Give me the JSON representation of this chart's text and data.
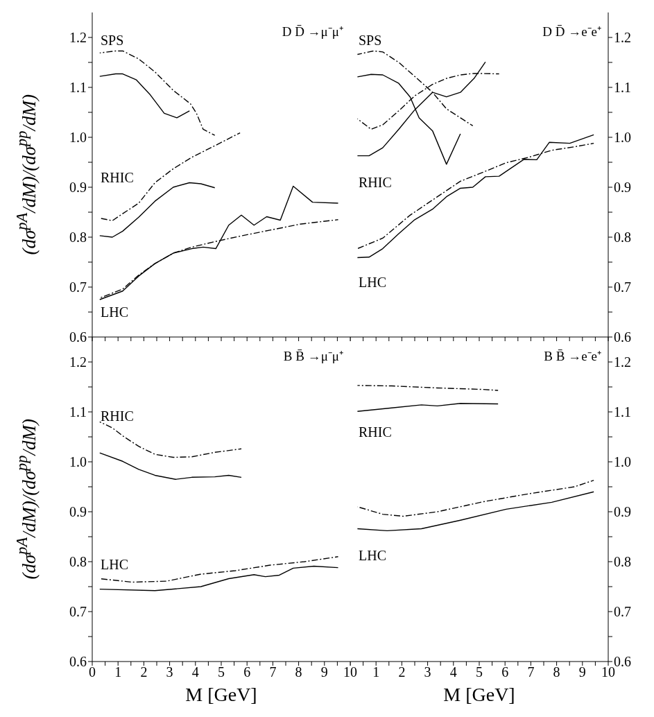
{
  "chart_data": [
    {
      "type": "line",
      "marker": "none",
      "ylabel": "(dσ$^{pA}$/dM)/(dσ$^{pp}$/dM)",
      "tick_labels": "y",
      "xlim": [
        0,
        10
      ],
      "xticks": [
        0,
        {
          "value": 0.5,
          "label": null
        },
        1,
        {
          "value": 1.5,
          "label": null
        },
        2,
        {
          "value": 2.5,
          "label": null
        },
        3,
        {
          "value": 3.5,
          "label": null
        },
        4,
        {
          "value": 4.5,
          "label": null
        },
        5,
        {
          "value": 5.5,
          "label": null
        },
        6,
        {
          "value": 6.5,
          "label": null
        },
        7,
        {
          "value": 7.5,
          "label": null
        },
        8,
        {
          "value": 8.5,
          "label": null
        },
        9,
        {
          "value": 9.5,
          "label": null
        },
        10
      ],
      "ylim": [
        0.6,
        1.25
      ],
      "yticks": [
        0.6,
        {
          "value": 0.65,
          "label": null
        },
        0.7,
        {
          "value": 0.75,
          "label": null
        },
        0.8,
        {
          "value": 0.85,
          "label": null
        },
        0.9,
        {
          "value": 0.95,
          "label": null
        },
        {
          "value": 1,
          "label": "1.0"
        },
        {
          "value": 1.05,
          "label": null
        },
        1.1,
        {
          "value": 1.15,
          "label": null
        },
        1.2
      ],
      "annotations": [
        "D D̄ →μ⁻μ⁺",
        "SPS",
        "RHIC",
        "LHC"
      ],
      "series": [
        {
          "color": "#000000",
          "line_style": "dashed",
          "x": [
            0.29,
            0.91,
            1.18,
            1.8,
            2.43,
            3.14,
            3.81,
            4.04,
            4.3,
            4.75
          ],
          "values": [
            1.169,
            1.173,
            1.173,
            1.157,
            1.131,
            1.094,
            1.067,
            1.048,
            1.016,
            1.004
          ]
        },
        {
          "color": "#000000",
          "line_style": "solid",
          "x": [
            0.29,
            0.91,
            1.18,
            1.71,
            2.25,
            2.79,
            3.28,
            3.77
          ],
          "values": [
            1.122,
            1.127,
            1.127,
            1.115,
            1.085,
            1.048,
            1.039,
            1.053
          ]
        },
        {
          "color": "#000000",
          "line_style": "dashed",
          "x": [
            0.29,
            0.78,
            1.18,
            1.8,
            2.43,
            3.14,
            3.86,
            4.75,
            5.73
          ],
          "values": [
            0.838,
            0.833,
            0.847,
            0.868,
            0.909,
            0.937,
            0.96,
            0.983,
            1.009
          ]
        },
        {
          "color": "#000000",
          "line_style": "solid",
          "x": [
            0.29,
            0.78,
            1.18,
            1.8,
            2.43,
            3.14,
            3.77,
            4.21,
            4.75
          ],
          "values": [
            0.803,
            0.8,
            0.812,
            0.84,
            0.872,
            0.9,
            0.909,
            0.907,
            0.899
          ]
        },
        {
          "color": "#000000",
          "line_style": "dashed",
          "x": [
            0.29,
            1.18,
            1.8,
            2.43,
            3.14,
            3.86,
            4.75,
            5.82,
            6.89,
            8.05,
            9.53
          ],
          "values": [
            0.678,
            0.696,
            0.724,
            0.747,
            0.768,
            0.78,
            0.791,
            0.803,
            0.814,
            0.826,
            0.835
          ]
        },
        {
          "color": "#000000",
          "line_style": "solid",
          "x": [
            0.29,
            1.18,
            1.8,
            2.43,
            3.14,
            3.86,
            4.3,
            4.79,
            5.29,
            5.78,
            6.27,
            6.76,
            7.29,
            7.79,
            8.54,
            9.53
          ],
          "values": [
            0.675,
            0.692,
            0.722,
            0.747,
            0.768,
            0.777,
            0.78,
            0.777,
            0.824,
            0.844,
            0.824,
            0.841,
            0.834,
            0.902,
            0.87,
            0.868
          ]
        }
      ]
    },
    {
      "type": "line",
      "marker": "none",
      "tick_labels": "y",
      "xlim": [
        0,
        10
      ],
      "xticks": [
        0,
        {
          "value": 0.5,
          "label": null
        },
        1,
        {
          "value": 1.5,
          "label": null
        },
        2,
        {
          "value": 2.5,
          "label": null
        },
        3,
        {
          "value": 3.5,
          "label": null
        },
        4,
        {
          "value": 4.5,
          "label": null
        },
        5,
        {
          "value": 5.5,
          "label": null
        },
        6,
        {
          "value": 6.5,
          "label": null
        },
        7,
        {
          "value": 7.5,
          "label": null
        },
        8,
        {
          "value": 8.5,
          "label": null
        },
        9,
        {
          "value": 9.5,
          "label": null
        },
        10
      ],
      "ylim": [
        0.6,
        1.25
      ],
      "yticks": [
        0.6,
        {
          "value": 0.65,
          "label": null
        },
        0.7,
        {
          "value": 0.75,
          "label": null
        },
        0.8,
        {
          "value": 0.85,
          "label": null
        },
        0.9,
        {
          "value": 0.95,
          "label": null
        },
        {
          "value": 1,
          "label": "1.0"
        },
        {
          "value": 1.05,
          "label": null
        },
        1.1,
        {
          "value": 1.15,
          "label": null
        },
        1.2
      ],
      "annotations": [
        "D D̄ →e⁻e⁺",
        "SPS",
        "RHIC",
        "LHC"
      ],
      "series": [
        {
          "color": "#000000",
          "line_style": "dashed",
          "x": [
            0.28,
            0.9,
            1.26,
            1.88,
            2.5,
            3.19,
            3.73,
            4.27,
            4.75
          ],
          "values": [
            1.166,
            1.173,
            1.171,
            1.15,
            1.122,
            1.09,
            1.057,
            1.039,
            1.023
          ]
        },
        {
          "color": "#000000",
          "line_style": "solid",
          "x": [
            0.28,
            0.81,
            1.26,
            1.88,
            2.32,
            2.67,
            3.19,
            3.73,
            4.27
          ],
          "values": [
            1.121,
            1.126,
            1.125,
            1.108,
            1.081,
            1.039,
            1.013,
            0.946,
            1.007
          ]
        },
        {
          "color": "#000000",
          "line_style": "dashed",
          "x": [
            0.28,
            0.81,
            1.26,
            1.88,
            2.5,
            3.19,
            3.73,
            4.27,
            4.8,
            5.77
          ],
          "values": [
            1.037,
            1.016,
            1.025,
            1.053,
            1.083,
            1.106,
            1.118,
            1.125,
            1.128,
            1.127
          ]
        },
        {
          "color": "#000000",
          "line_style": "solid",
          "x": [
            0.28,
            0.73,
            1.26,
            1.88,
            2.5,
            3.19,
            3.73,
            4.27,
            4.8,
            5.24
          ],
          "values": [
            0.963,
            0.963,
            0.979,
            1.016,
            1.055,
            1.09,
            1.081,
            1.09,
            1.118,
            1.151
          ]
        },
        {
          "color": "#000000",
          "line_style": "dashed",
          "x": [
            0.28,
            1.26,
            2.32,
            3.38,
            4.27,
            5.15,
            6.04,
            6.92,
            7.81,
            8.69,
            9.44
          ],
          "values": [
            0.777,
            0.798,
            0.844,
            0.881,
            0.912,
            0.93,
            0.949,
            0.96,
            0.974,
            0.981,
            0.988
          ]
        },
        {
          "color": "#000000",
          "line_style": "solid",
          "x": [
            0.28,
            0.73,
            1.26,
            1.88,
            2.5,
            3.19,
            3.73,
            4.27,
            4.75,
            5.24,
            5.77,
            6.74,
            7.23,
            7.72,
            8.51,
            9.44
          ],
          "values": [
            0.759,
            0.76,
            0.777,
            0.807,
            0.835,
            0.856,
            0.881,
            0.898,
            0.9,
            0.921,
            0.922,
            0.956,
            0.955,
            0.99,
            0.988,
            1.005
          ]
        }
      ]
    },
    {
      "type": "line",
      "marker": "none",
      "ylabel": "(dσ$^{pA}$/dM)/(dσ$^{pp}$/dM)",
      "xlabel": "M [GeV]",
      "xlim": [
        0,
        10
      ],
      "xticks": [
        0,
        {
          "value": 0.5,
          "label": null
        },
        1,
        {
          "value": 1.5,
          "label": null
        },
        2,
        {
          "value": 2.5,
          "label": null
        },
        3,
        {
          "value": 3.5,
          "label": null
        },
        4,
        {
          "value": 4.5,
          "label": null
        },
        5,
        {
          "value": 5.5,
          "label": null
        },
        6,
        {
          "value": 6.5,
          "label": null
        },
        7,
        {
          "value": 7.5,
          "label": null
        },
        8,
        {
          "value": 8.5,
          "label": null
        },
        9,
        {
          "value": 9.5,
          "label": null
        },
        10
      ],
      "ylim": [
        0.6,
        1.25
      ],
      "yticks": [
        0.6,
        {
          "value": 0.65,
          "label": null
        },
        0.7,
        {
          "value": 0.75,
          "label": null
        },
        0.8,
        {
          "value": 0.85,
          "label": null
        },
        0.9,
        {
          "value": 0.95,
          "label": null
        },
        {
          "value": 1,
          "label": "1.0"
        },
        {
          "value": 1.05,
          "label": null
        },
        1.1,
        {
          "value": 1.15,
          "label": null
        },
        1.2
      ],
      "annotations": [
        "B B̄ →μ⁻μ⁺",
        "RHIC",
        "LHC"
      ],
      "series": [
        {
          "color": "#000000",
          "line_style": "dashed",
          "x": [
            0.29,
            0.78,
            1.18,
            1.8,
            2.43,
            3.14,
            3.86,
            4.75,
            5.78
          ],
          "values": [
            1.08,
            1.068,
            1.052,
            1.031,
            1.015,
            1.009,
            1.01,
            1.019,
            1.026
          ]
        },
        {
          "color": "#000000",
          "line_style": "solid",
          "x": [
            0.29,
            1.18,
            1.8,
            2.43,
            3.23,
            3.86,
            4.75,
            5.29,
            5.78
          ],
          "values": [
            1.018,
            1.001,
            0.985,
            0.973,
            0.965,
            0.969,
            0.97,
            0.973,
            0.969
          ]
        },
        {
          "color": "#000000",
          "line_style": "dashed",
          "x": [
            0.29,
            1.54,
            2.88,
            4.21,
            5.55,
            6.89,
            8.23,
            9.53
          ],
          "values": [
            0.766,
            0.759,
            0.761,
            0.775,
            0.782,
            0.793,
            0.8,
            0.81
          ]
        },
        {
          "color": "#000000",
          "line_style": "solid",
          "x": [
            0.29,
            2.43,
            4.21,
            5.29,
            6.27,
            6.71,
            7.25,
            7.79,
            8.59,
            9.53
          ],
          "values": [
            0.745,
            0.742,
            0.75,
            0.766,
            0.774,
            0.77,
            0.773,
            0.787,
            0.791,
            0.788
          ]
        }
      ]
    },
    {
      "type": "line",
      "marker": "none",
      "xlabel": "M [GeV]",
      "xlim": [
        0,
        10
      ],
      "xticks": [
        {
          "value": 0,
          "label": null
        },
        {
          "value": 0.5,
          "label": null
        },
        1,
        {
          "value": 1.5,
          "label": null
        },
        2,
        {
          "value": 2.5,
          "label": null
        },
        3,
        {
          "value": 3.5,
          "label": null
        },
        4,
        {
          "value": 4.5,
          "label": null
        },
        5,
        {
          "value": 5.5,
          "label": null
        },
        6,
        {
          "value": 6.5,
          "label": null
        },
        7,
        {
          "value": 7.5,
          "label": null
        },
        8,
        {
          "value": 8.5,
          "label": null
        },
        9,
        {
          "value": 9.5,
          "label": null
        },
        10
      ],
      "ylim": [
        0.6,
        1.25
      ],
      "yticks": [
        0.6,
        {
          "value": 0.65,
          "label": null
        },
        0.7,
        {
          "value": 0.75,
          "label": null
        },
        0.8,
        {
          "value": 0.85,
          "label": null
        },
        0.9,
        {
          "value": 0.95,
          "label": null
        },
        {
          "value": 1,
          "label": "1.0"
        },
        {
          "value": 1.05,
          "label": null
        },
        1.1,
        {
          "value": 1.15,
          "label": null
        },
        1.2
      ],
      "annotations": [
        "B B̄ →e⁻e⁺",
        "RHIC",
        "LHC"
      ],
      "series": [
        {
          "color": "#000000",
          "line_style": "dashed",
          "x": [
            0.28,
            1.61,
            3.38,
            5.15,
            5.73
          ],
          "values": [
            1.153,
            1.152,
            1.148,
            1.145,
            1.143
          ]
        },
        {
          "color": "#000000",
          "line_style": "solid",
          "x": [
            0.28,
            1.61,
            2.76,
            3.38,
            4.27,
            5.73
          ],
          "values": [
            1.101,
            1.108,
            1.114,
            1.112,
            1.117,
            1.116
          ]
        },
        {
          "color": "#000000",
          "line_style": "dashed",
          "x": [
            0.28,
            1.26,
            2.05,
            3.38,
            5.15,
            6.92,
            8.69,
            9.44
          ],
          "values": [
            0.91,
            0.895,
            0.891,
            0.9,
            0.92,
            0.936,
            0.95,
            0.963
          ]
        },
        {
          "color": "#000000",
          "line_style": "solid",
          "x": [
            0.28,
            1.43,
            2.76,
            4.27,
            6.04,
            7.81,
            9.44
          ],
          "values": [
            0.866,
            0.862,
            0.866,
            0.883,
            0.905,
            0.919,
            0.94
          ]
        }
      ]
    }
  ]
}
